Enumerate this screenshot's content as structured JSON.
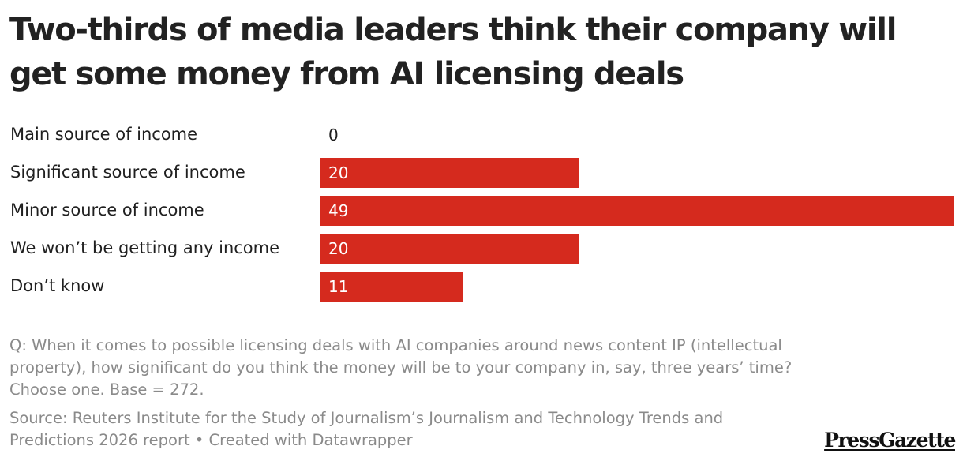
{
  "title": "Two-thirds of media leaders think their company will get some money from AI licensing deals",
  "chart_data": {
    "type": "bar",
    "orientation": "horizontal",
    "categories": [
      "Main source of income",
      "Significant source of income",
      "Minor source of income",
      "We won’t be getting any income",
      "Don’t know"
    ],
    "values": [
      0,
      20,
      49,
      20,
      11
    ],
    "value_labels": [
      "0",
      "20",
      "49",
      "20",
      "11"
    ],
    "xlim": [
      0,
      49
    ],
    "bar_color": "#d52a1e",
    "xlabel": "",
    "ylabel": ""
  },
  "note": "Q: When it comes to possible licensing deals with AI companies around news content IP (intellectual property), how significant do you think the money will be to your company in, say, three years’ time? Choose one. Base = 272.",
  "source": "Source: Reuters Institute for the Study of Journalism’s Journalism and Technology Trends and Predictions 2026 report • Created with Datawrapper",
  "logo_text": "PressGazette"
}
